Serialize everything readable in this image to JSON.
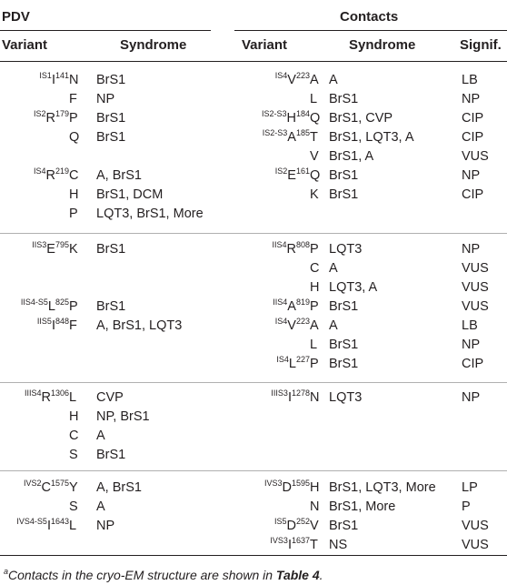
{
  "header": {
    "pdv": "PDV",
    "contacts": "Contacts",
    "variant": "Variant",
    "syndrome": "Syndrome",
    "variant2": "Variant",
    "syndrome2": "Syndrome",
    "signif": "Signif."
  },
  "rows": [
    {
      "lsup": "IS1",
      "lmain": "I",
      "lpos": "141",
      "lalt": "N",
      "lsyn": "BrS1",
      "rsup": "IS4",
      "rmain": "V",
      "rpos": "223",
      "ralt": "A",
      "rsyn": "A",
      "rsig": "LB"
    },
    {
      "lalt": "F",
      "lsyn": "NP",
      "ralt": "L",
      "rsyn": "BrS1",
      "rsig": "NP"
    },
    {
      "lsup": "IS2",
      "lmain": "R",
      "lpos": "179",
      "lalt": "P",
      "lsyn": "BrS1",
      "rsup": "IS2-S3",
      "rmain": "H",
      "rpos": "184",
      "ralt": "Q",
      "rsyn": "BrS1, CVP",
      "rsig": "CIP"
    },
    {
      "lalt": "Q",
      "lsyn": "BrS1",
      "rsup": "IS2-S3",
      "rmain": "A",
      "rpos": "185",
      "ralt": "T",
      "rsyn": "BrS1, LQT3, A",
      "rsig": "CIP"
    },
    {
      "ralt": "V",
      "rsyn": "BrS1, A",
      "rsig": "VUS"
    },
    {
      "lsup": "IS4",
      "lmain": "R",
      "lpos": "219",
      "lalt": "C",
      "lsyn": "A, BrS1",
      "rsup": "IS2",
      "rmain": "E",
      "rpos": "161",
      "ralt": "Q",
      "rsyn": "BrS1",
      "rsig": "NP"
    },
    {
      "lalt": "H",
      "lsyn": "BrS1, DCM",
      "ralt": "K",
      "rsyn": "BrS1",
      "rsig": "CIP"
    },
    {
      "lalt": "P",
      "lsyn": "LQT3, BrS1, More"
    },
    {
      "lsup": "IIS3",
      "lmain": "E",
      "lpos": "795",
      "lalt": "K",
      "lsyn": "BrS1",
      "rsup": "IIS4",
      "rmain": "R",
      "rpos": "808",
      "ralt": "P",
      "rsyn": "LQT3",
      "rsig": "NP"
    },
    {
      "ralt": "C",
      "rsyn": "A",
      "rsig": "VUS"
    },
    {
      "ralt": "H",
      "rsyn": "LQT3, A",
      "rsig": "VUS"
    },
    {
      "lsup": "IIS4-S5",
      "lmain": "L",
      "lpos": "825",
      "lalt": "P",
      "lsyn": "BrS1",
      "rsup": "IIS4",
      "rmain": "A",
      "rpos": "819",
      "ralt": "P",
      "rsyn": "BrS1",
      "rsig": "VUS"
    },
    {
      "lsup": "IIS5",
      "lmain": "I",
      "lpos": "848",
      "lalt": "F",
      "lsyn": "A, BrS1, LQT3",
      "rsup": "IS4",
      "rmain": "V",
      "rpos": "223",
      "ralt": "A",
      "rsyn": "A",
      "rsig": "LB"
    },
    {
      "ralt": "L",
      "rsyn": "BrS1",
      "rsig": "NP"
    },
    {
      "rsup": "IS4",
      "rmain": "L",
      "rpos": "227",
      "ralt": "P",
      "rsyn": "BrS1",
      "rsig": "CIP"
    },
    {
      "lsup": "IIIS4",
      "lmain": "R",
      "lpos": "1306",
      "lalt": "L",
      "lsyn": "CVP",
      "rsup": "IIIS3",
      "rmain": "I",
      "rpos": "1278",
      "ralt": "N",
      "rsyn": "LQT3",
      "rsig": "NP"
    },
    {
      "lalt": "H",
      "lsyn": "NP, BrS1"
    },
    {
      "lalt": "C",
      "lsyn": "A"
    },
    {
      "lalt": "S",
      "lsyn": "BrS1"
    },
    {
      "lsup": "IVS2",
      "lmain": "C",
      "lpos": "1575",
      "lalt": "Y",
      "lsyn": "A, BrS1",
      "rsup": "IVS3",
      "rmain": "D",
      "rpos": "1595",
      "ralt": "H",
      "rsyn": "BrS1, LQT3, More",
      "rsig": "LP"
    },
    {
      "lalt": "S",
      "lsyn": "A",
      "ralt": "N",
      "rsyn": "BrS1, More",
      "rsig": "P"
    },
    {
      "lsup": "IVS4-S5",
      "lmain": "I",
      "lpos": "1643",
      "lalt": "L",
      "lsyn": "NP",
      "rsup": "IS5",
      "rmain": "D",
      "rpos": "252",
      "ralt": "V",
      "rsyn": "BrS1",
      "rsig": "VUS"
    },
    {
      "rsup": "IVS3",
      "rmain": "I",
      "rpos": "1637",
      "ralt": "T",
      "rsyn": "NS",
      "rsig": "VUS"
    }
  ],
  "footnote": {
    "mark": "a",
    "text": "Contacts in the cryo-EM structure are shown in ",
    "ref": "Table 4",
    "end": "."
  }
}
